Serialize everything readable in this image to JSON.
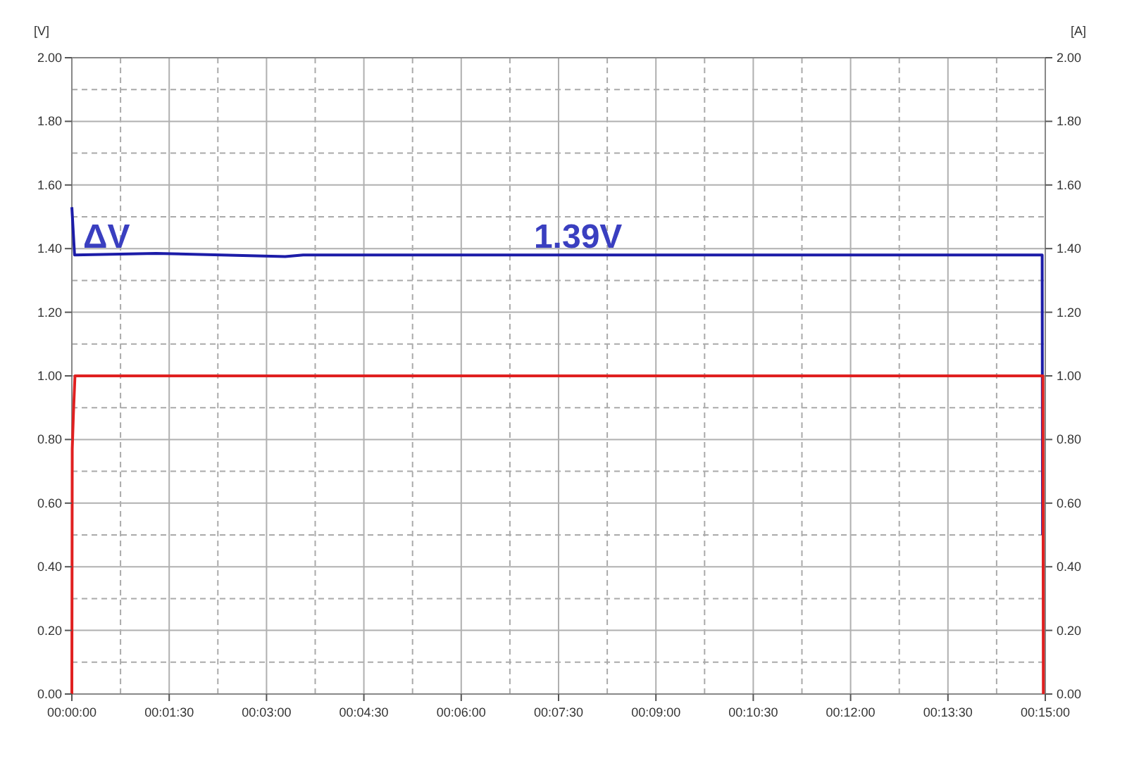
{
  "chart_data": {
    "type": "line",
    "ylabel": "[V]",
    "y2label": "[A]",
    "xlim": [
      0,
      0.25
    ],
    "xticks": [
      {
        "value": 0,
        "label": "00:00:00"
      },
      {
        "value": 0.025,
        "label": "00:01:30"
      },
      {
        "value": 0.05,
        "label": "00:03:00"
      },
      {
        "value": 0.075,
        "label": "00:04:30"
      },
      {
        "value": 0.1,
        "label": "00:06:00"
      },
      {
        "value": 0.125,
        "label": "00:07:30"
      },
      {
        "value": 0.15,
        "label": "00:09:00"
      },
      {
        "value": 0.175,
        "label": "00:10:30"
      },
      {
        "value": 0.2,
        "label": "00:12:00"
      },
      {
        "value": 0.225,
        "label": "00:13:30"
      },
      {
        "value": 0.25,
        "label": "00:15:00"
      }
    ],
    "ylim": [
      0,
      2
    ],
    "yticks": [
      {
        "value": 0,
        "label": "0.00"
      },
      {
        "value": 0.2,
        "label": "0.20"
      },
      {
        "value": 0.4,
        "label": "0.40"
      },
      {
        "value": 0.6,
        "label": "0.60"
      },
      {
        "value": 0.8,
        "label": "0.80"
      },
      {
        "value": 1,
        "label": "1.00"
      },
      {
        "value": 1.2,
        "label": "1.20"
      },
      {
        "value": 1.4,
        "label": "1.40"
      },
      {
        "value": 1.6,
        "label": "1.60"
      },
      {
        "value": 1.8,
        "label": "1.80"
      },
      {
        "value": 2,
        "label": "2.00"
      }
    ],
    "y2lim": [
      0,
      2
    ],
    "y2ticks": [
      {
        "value": 0,
        "label": "0.00"
      },
      {
        "value": 0.2,
        "label": "0.20"
      },
      {
        "value": 0.4,
        "label": "0.40"
      },
      {
        "value": 0.6,
        "label": "0.60"
      },
      {
        "value": 0.8,
        "label": "0.80"
      },
      {
        "value": 1,
        "label": "1.00"
      },
      {
        "value": 1.2,
        "label": "1.20"
      },
      {
        "value": 1.4,
        "label": "1.40"
      },
      {
        "value": 1.6,
        "label": "1.60"
      },
      {
        "value": 1.8,
        "label": "1.80"
      },
      {
        "value": 2,
        "label": "2.00"
      }
    ],
    "grid": true,
    "marker": "none",
    "line_style": "solid",
    "series": [
      {
        "color": "#1c1ca8",
        "x": [
          0,
          0.0007,
          0.0216,
          0.0548,
          0.0594,
          0.2492,
          0.2493
        ],
        "values": [
          1.53,
          1.38,
          1.385,
          1.375,
          1.38,
          1.38,
          0.5
        ]
      },
      {
        "color": "#e02020",
        "axis": "y2",
        "x": [
          0,
          0.0001,
          0.0004,
          0.0008,
          0.2494,
          0.2495
        ],
        "values": [
          0,
          0.77,
          0.88,
          1.0,
          1.0,
          0
        ]
      }
    ],
    "annotations": [
      "ΔV",
      "1.39V"
    ]
  }
}
